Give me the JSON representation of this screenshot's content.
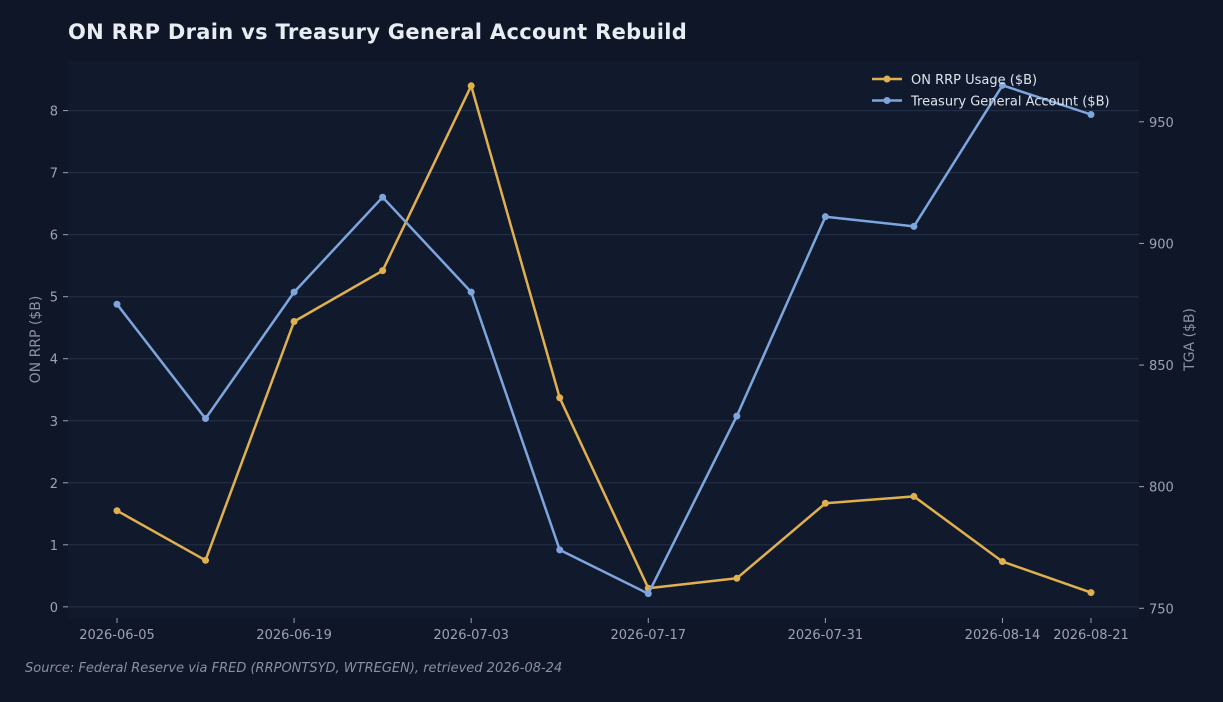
{
  "chart_data": {
    "type": "line",
    "title": "ON RRP Drain vs Treasury General Account Rebuild",
    "x": [
      "2026-06-05",
      "2026-06-12",
      "2026-06-19",
      "2026-06-26",
      "2026-07-03",
      "2026-07-10",
      "2026-07-17",
      "2026-07-24",
      "2026-07-31",
      "2026-08-07",
      "2026-08-14",
      "2026-08-21"
    ],
    "x_ticks": [
      "2026-06-05",
      "2026-06-19",
      "2026-07-03",
      "2026-07-17",
      "2026-07-31",
      "2026-08-14",
      "2026-08-21"
    ],
    "series": [
      {
        "name": "ON RRP Usage ($B)",
        "axis": "left",
        "color": "#e0b04e",
        "values": [
          1.55,
          0.75,
          4.6,
          5.42,
          8.4,
          3.37,
          0.3,
          0.46,
          1.67,
          1.78,
          0.73,
          0.23
        ]
      },
      {
        "name": "Treasury General Account ($B)",
        "axis": "right",
        "color": "#7ea6de",
        "values": [
          875,
          828,
          880,
          919,
          880,
          774,
          756,
          829,
          911,
          907,
          965,
          953
        ]
      }
    ],
    "y_left": {
      "label": "ON RRP ($B)",
      "min": -0.18,
      "max": 8.8,
      "ticks": [
        0,
        1,
        2,
        3,
        4,
        5,
        6,
        7,
        8
      ]
    },
    "y_right": {
      "label": "TGA ($B)",
      "min": 746,
      "max": 975,
      "ticks": [
        750,
        800,
        850,
        900,
        950
      ]
    },
    "grid": true,
    "legend_position": "top-right"
  },
  "source": "Source: Federal Reserve via FRED (RRPONTSYD, WTREGEN), retrieved 2026-08-24"
}
